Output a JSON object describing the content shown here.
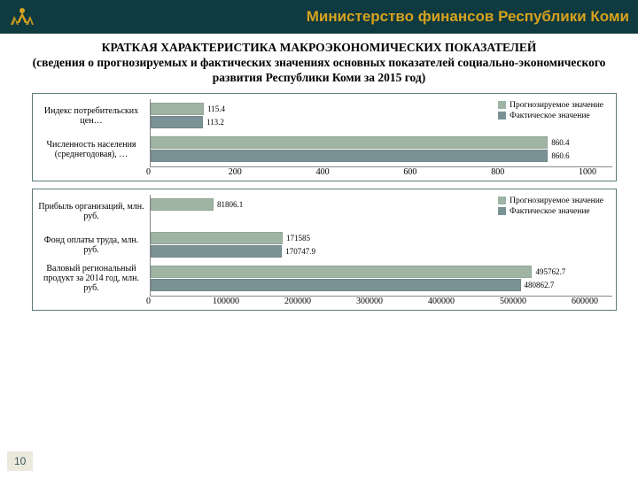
{
  "header": {
    "title": "Министерство финансов Республики Коми",
    "title_color": "#d6a21e",
    "bg_color": "#0f3a3f",
    "logo_color": "#d6a21e"
  },
  "main_title": {
    "line1": "КРАТКАЯ ХАРАКТЕРИСТИКА МАКРОЭКОНОМИЧЕСКИХ ПОКАЗАТЕЛЕЙ",
    "line2": "(сведения о прогнозируемых и фактических значениях основных показателей социально-экономического развития Республики Коми за 2015 год)"
  },
  "colors": {
    "forecast": "#9fb4a3",
    "actual": "#7a9295",
    "border": "#5a7a7a",
    "axis": "#888888"
  },
  "legend": {
    "forecast": "Прогнозируемое значение",
    "actual": "Фактическое значение"
  },
  "chart1": {
    "type": "bar-horizontal-grouped",
    "xmax": 1000,
    "xticks": [
      "0",
      "200",
      "400",
      "600",
      "800",
      "1000"
    ],
    "categories": [
      {
        "label": "Индекс потребительских цен…",
        "forecast": 115.4,
        "actual": 113.2,
        "forecast_label": "115.4",
        "actual_label": "113.2"
      },
      {
        "label": "Численность населения (среднегодовая), …",
        "forecast": 860.4,
        "actual": 860.6,
        "forecast_label": "860.4",
        "actual_label": "860.6"
      }
    ]
  },
  "chart2": {
    "type": "bar-horizontal-grouped",
    "xmax": 600000,
    "xticks": [
      "0",
      "100000",
      "200000",
      "300000",
      "400000",
      "500000",
      "600000"
    ],
    "categories": [
      {
        "label": "Прибыль организаций, млн. руб.",
        "forecast": 81806.1,
        "actual": null,
        "forecast_label": "81806.1",
        "actual_label": ""
      },
      {
        "label": "Фонд оплаты труда, млн. руб.",
        "forecast": 171585,
        "actual": 170747.9,
        "forecast_label": "171585",
        "actual_label": "170747.9"
      },
      {
        "label": "Валовый региональный продукт за 2014 год, млн. руб.",
        "forecast": 495762.7,
        "actual": 480862.7,
        "forecast_label": "495762.7",
        "actual_label": "480862.7"
      }
    ]
  },
  "slide_number": "10"
}
